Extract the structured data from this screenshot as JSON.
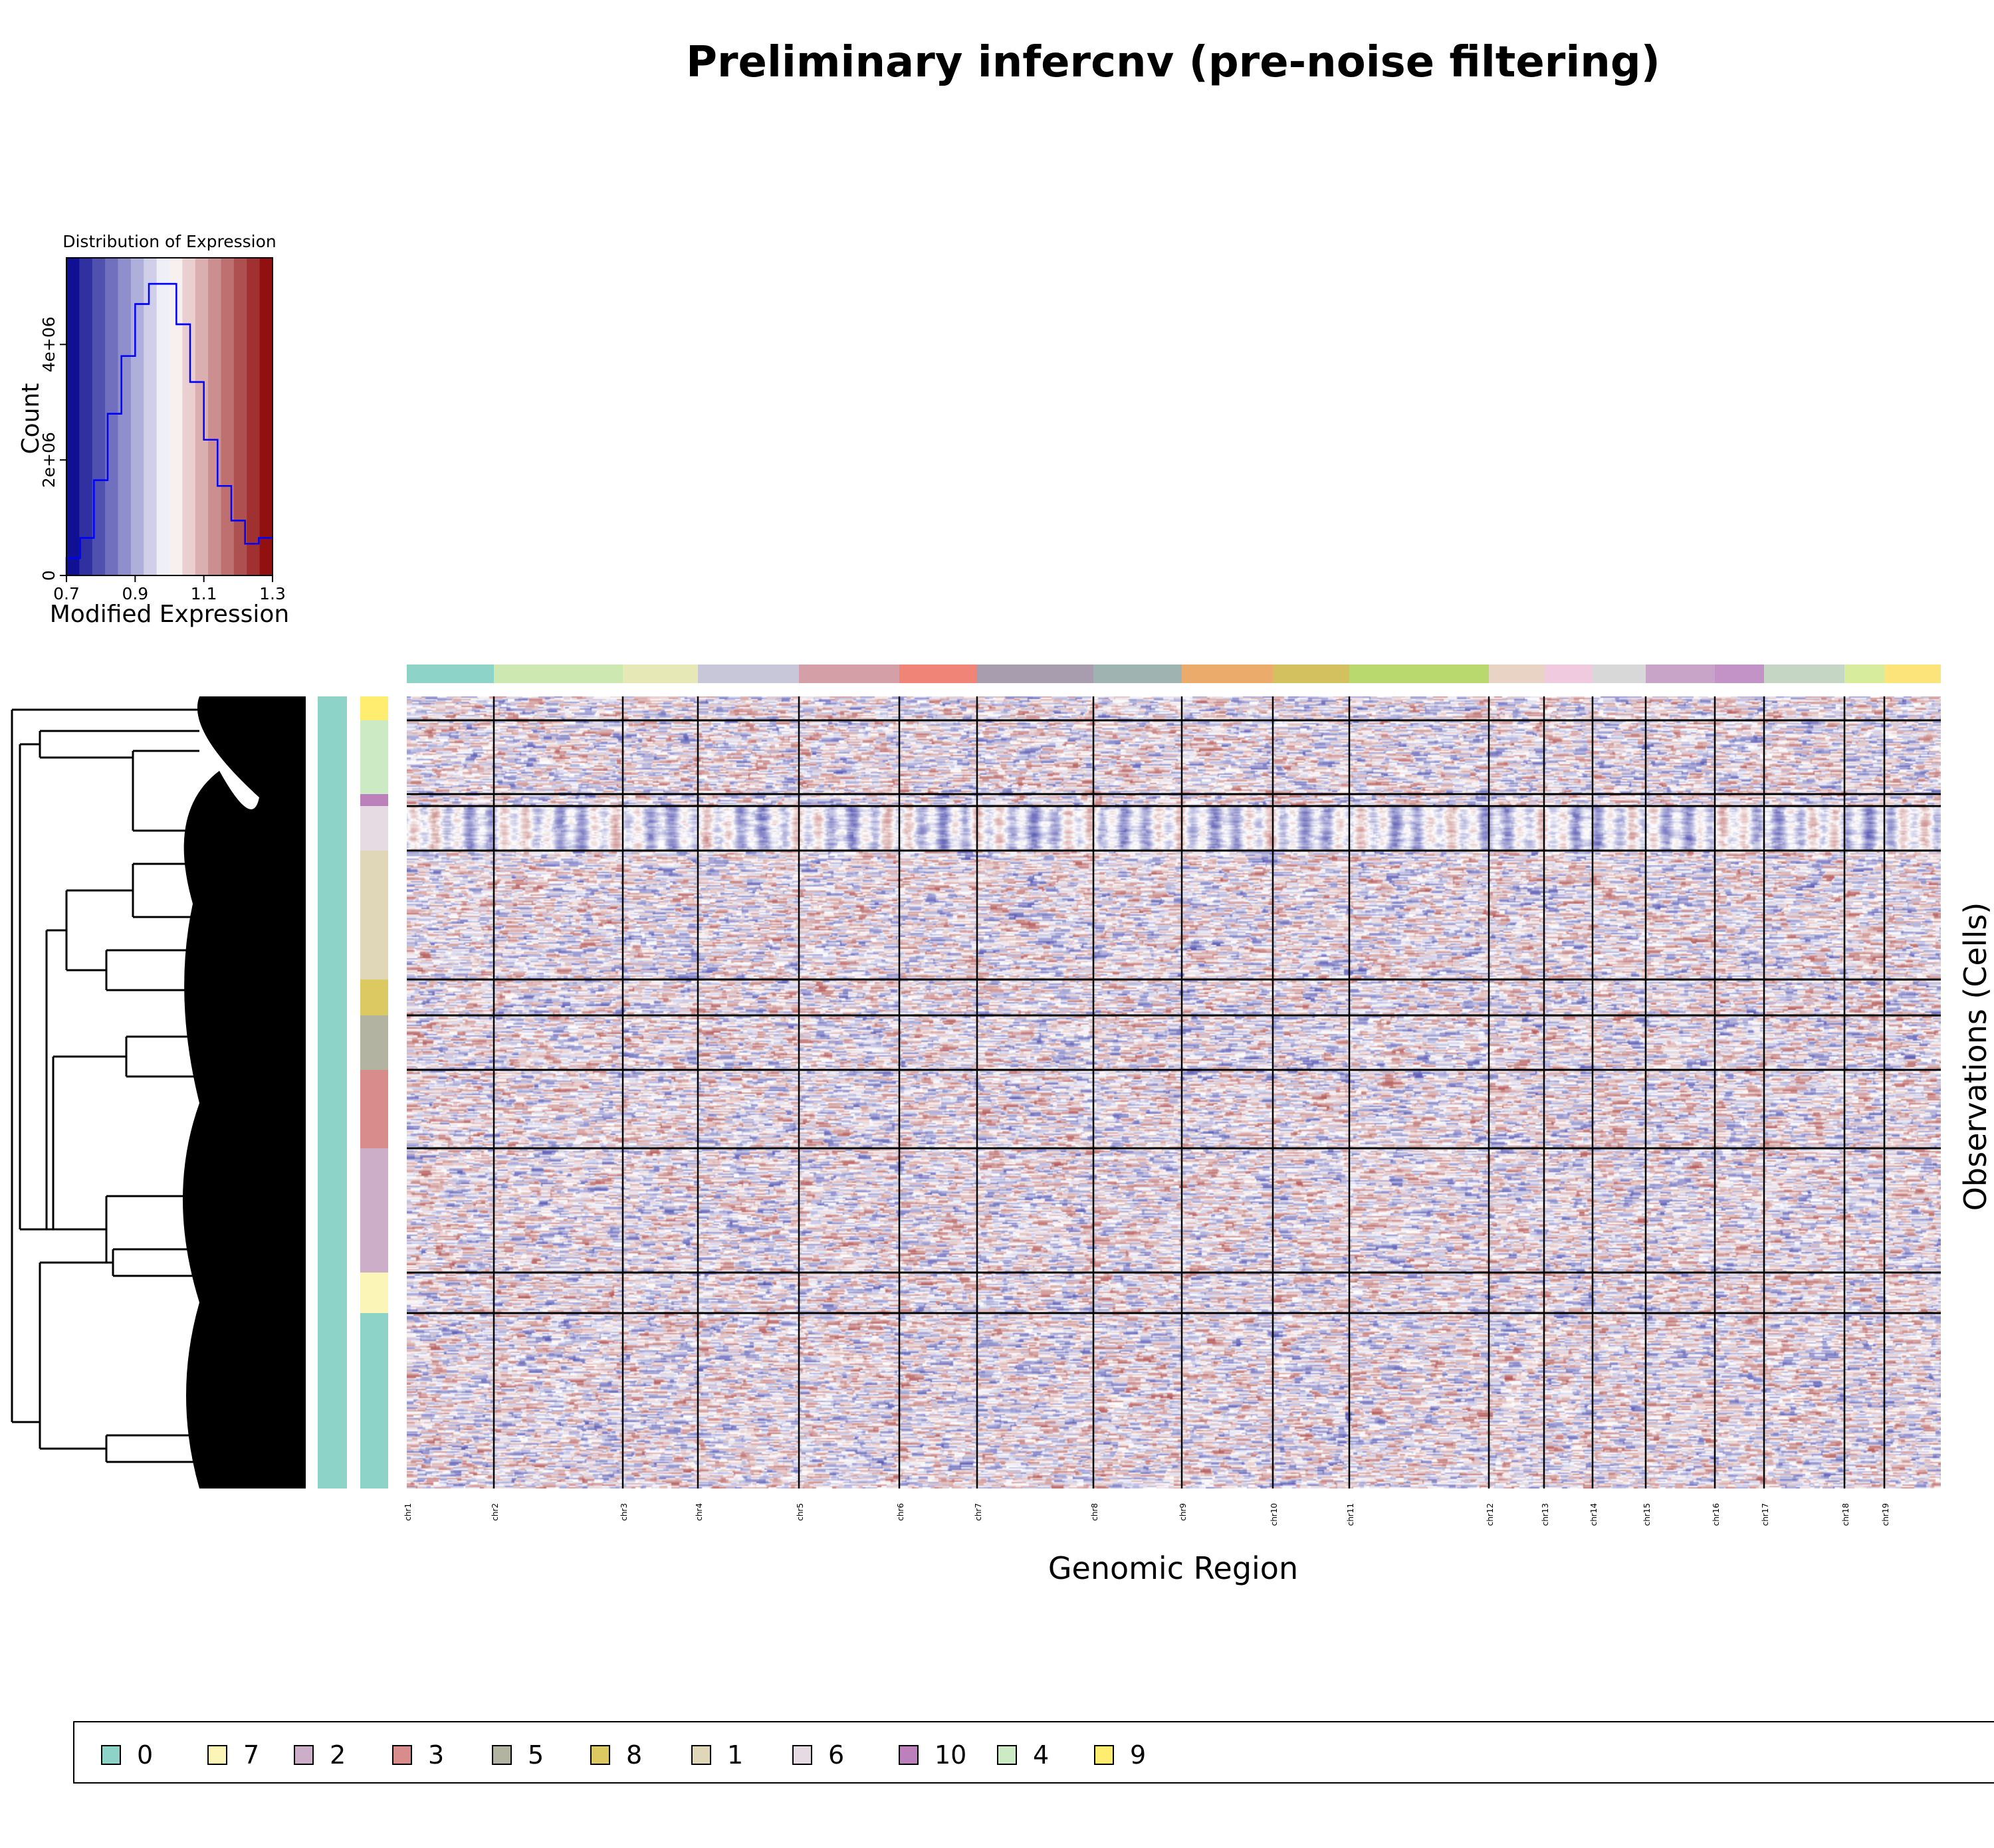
{
  "title": "Preliminary infercnv (pre-noise filtering)",
  "histogram": {
    "title": "Distribution of Expression",
    "xlabel": "Modified Expression",
    "ylabel": "Count",
    "xticks": [
      "0.7",
      "0.9",
      "1.1",
      "1.3"
    ],
    "yticks": [
      "0",
      "2e+06",
      "4e+06"
    ],
    "line_color": "#0000ff"
  },
  "chart_data": [
    {
      "type": "bar",
      "title": "Distribution of Expression",
      "xlabel": "Modified Expression",
      "ylabel": "Count",
      "xlim": [
        0.7,
        1.3
      ],
      "ylim": [
        0,
        5500000
      ],
      "bin_width": 0.04,
      "bin_starts": [
        0.7,
        0.74,
        0.78,
        0.82,
        0.86,
        0.9,
        0.94,
        0.98,
        1.02,
        1.06,
        1.1,
        1.14,
        1.18,
        1.22,
        1.26
      ],
      "values": [
        300000,
        650000,
        1650000,
        2800000,
        3800000,
        4700000,
        5050000,
        5050000,
        4350000,
        3350000,
        2350000,
        1550000,
        950000,
        550000,
        650000
      ]
    },
    {
      "type": "heatmap",
      "xlabel": "Genomic Region",
      "ylabel": "Observations (Cells)",
      "chromosomes": [
        "chr1",
        "chr2",
        "chr3",
        "chr4",
        "chr5",
        "chr6",
        "chr7",
        "chr8",
        "chr9",
        "chr10",
        "chr11",
        "chr12",
        "chr13",
        "chr14",
        "chr15",
        "chr16",
        "chr17",
        "chr18",
        "chr19"
      ],
      "chromosome_colors": [
        "#8dd3c7",
        "#cde8b1",
        "#e6e8b5",
        "#c8c7d9",
        "#d49fa7",
        "#ef8477",
        "#a79daf",
        "#9fb3b0",
        "#ebac6b",
        "#d3c05e",
        "#b9d86e",
        "#e8d3c4",
        "#f0cbe0",
        "#d8d8d8",
        "#c8a4c8",
        "#c392c7",
        "#c6d6c4",
        "#d7ec9c",
        "#fde47a"
      ],
      "cell_groups": [
        {
          "cluster": "9",
          "color": "#ffed6f"
        },
        {
          "cluster": "4",
          "color": "#ccebc5"
        },
        {
          "cluster": "10",
          "color": "#bc80bd"
        },
        {
          "cluster": "6",
          "color": "#e6dae3"
        },
        {
          "cluster": "1",
          "color": "#e0d6b8"
        },
        {
          "cluster": "8",
          "color": "#dcc962"
        },
        {
          "cluster": "5",
          "color": "#b3b3a2"
        },
        {
          "cluster": "3",
          "color": "#d98c8c"
        },
        {
          "cluster": "2",
          "color": "#cdaec8"
        },
        {
          "cluster": "7",
          "color": "#fbf6b8"
        },
        {
          "cluster": "0",
          "color": "#8dd3c7"
        }
      ],
      "color_scale": {
        "min": 0.7,
        "mid": 1.0,
        "max": 1.3,
        "low_color": "#00008b",
        "mid_color": "#ffffff",
        "high_color": "#8b0000"
      }
    }
  ],
  "legend": [
    {
      "label": "0",
      "color": "#8dd3c7"
    },
    {
      "label": "7",
      "color": "#fbf6b8"
    },
    {
      "label": "2",
      "color": "#cdaec8"
    },
    {
      "label": "3",
      "color": "#d98c8c"
    },
    {
      "label": "5",
      "color": "#b3b3a2"
    },
    {
      "label": "8",
      "color": "#dcc962"
    },
    {
      "label": "1",
      "color": "#e0d6b8"
    },
    {
      "label": "6",
      "color": "#e6dae3"
    },
    {
      "label": "10",
      "color": "#bc80bd"
    },
    {
      "label": "4",
      "color": "#ccebc5"
    },
    {
      "label": "9",
      "color": "#ffed6f"
    }
  ]
}
